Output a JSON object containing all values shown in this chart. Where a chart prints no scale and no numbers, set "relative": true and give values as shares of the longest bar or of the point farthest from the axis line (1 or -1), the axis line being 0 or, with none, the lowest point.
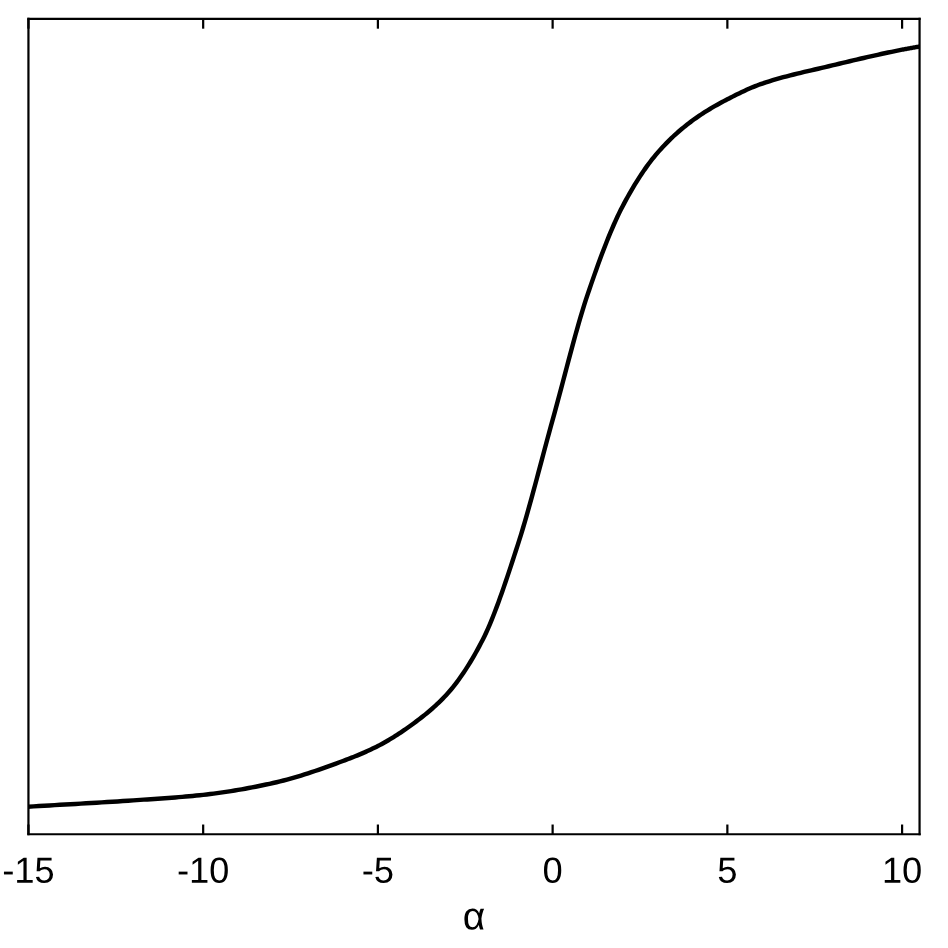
{
  "chart_data": {
    "type": "line",
    "xlabel": "α",
    "relative": true,
    "xlim": [
      -15,
      10.5
    ],
    "xticks": [
      -15,
      -10,
      -5,
      0,
      5,
      10
    ],
    "x": [
      -15,
      -12,
      -10,
      -8,
      -6,
      -5,
      -4,
      -3,
      -2,
      -1,
      0,
      1,
      2,
      3,
      4,
      5,
      6,
      8,
      10,
      10.5
    ],
    "series": [
      {
        "color": "#000000",
        "values": [
          0.035,
          0.043,
          0.05,
          0.065,
          0.093,
          0.112,
          0.14,
          0.179,
          0.247,
          0.367,
          0.526,
          0.685,
          0.797,
          0.865,
          0.906,
          0.933,
          0.953,
          0.976,
          0.996,
          1.0
        ]
      }
    ],
    "grid": false,
    "marker": "none",
    "line_style": "solid"
  }
}
